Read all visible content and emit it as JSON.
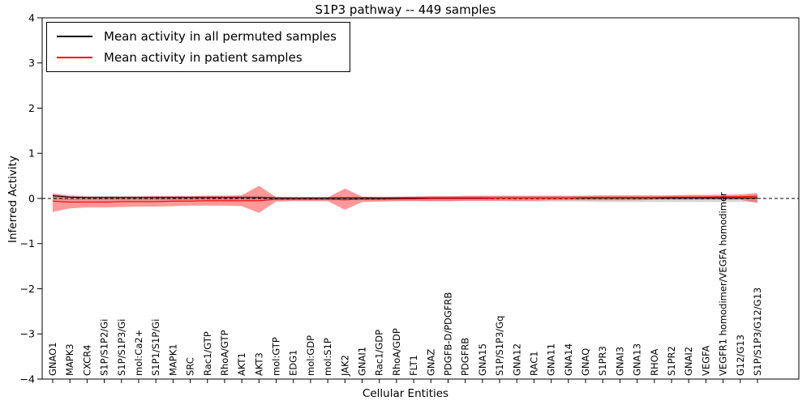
{
  "chart_data": {
    "type": "line",
    "title": "S1P3 pathway -- 449 samples",
    "xlabel": "Cellular Entities",
    "ylabel": "Inferred Activity",
    "ylim": [
      -4,
      4
    ],
    "yticks": [
      -4,
      -3,
      -2,
      -1,
      0,
      1,
      2,
      3,
      4
    ],
    "grid": false,
    "zero_line": true,
    "legend_position": "upper left",
    "categories": [
      "GNAO1",
      "MAPK3",
      "CXCR4",
      "S1P/S1P2/Gi",
      "S1P/S1P3/Gi",
      "mol:Ca2+",
      "S1P1/S1P/Gi",
      "MAPK1",
      "SRC",
      "Rac1/GTP",
      "RhoA/GTP",
      "AKT1",
      "AKT3",
      "mol:GTP",
      "EDG1",
      "mol:GDP",
      "mol:S1P",
      "JAK2",
      "GNAI1",
      "Rac1/GDP",
      "RhoA/GDP",
      "FLT1",
      "GNAZ",
      "PDGFB-D/PDGFRB",
      "PDGFRB",
      "GNA15",
      "S1P/S1P3/Gq",
      "GNA12",
      "RAC1",
      "GNA11",
      "GNA14",
      "GNAQ",
      "S1PR3",
      "GNAI3",
      "GNA13",
      "RHOA",
      "S1PR2",
      "GNAI2",
      "VEGFA",
      "VEGFR1 homodimer/VEGFA homodimer",
      "G12/G13",
      "S1P/S1P3/G12/G13"
    ],
    "series": [
      {
        "name": "Mean activity in all permuted samples",
        "color": "#000000",
        "band_color": "rgba(0,0,0,0.15)",
        "values": [
          0.06,
          0.03,
          0.02,
          0.02,
          0.02,
          0.02,
          0.02,
          0.02,
          0.02,
          0.02,
          0.02,
          0.02,
          0.02,
          0.01,
          0.01,
          0.01,
          0.01,
          0.01,
          0.01,
          0.01,
          0.01,
          0.01,
          0.01,
          0.01,
          0.01,
          0.01,
          0.01,
          0.01,
          0.01,
          0.01,
          0.01,
          0.01,
          0.01,
          0.01,
          0.01,
          0.01,
          0.01,
          0.01,
          0.01,
          0.01,
          0.01,
          0.01
        ],
        "band_upper": [
          0.12,
          0.08,
          0.06,
          0.06,
          0.06,
          0.06,
          0.06,
          0.06,
          0.06,
          0.06,
          0.06,
          0.06,
          0.06,
          0.04,
          0.04,
          0.04,
          0.04,
          0.04,
          0.04,
          0.04,
          0.05,
          0.05,
          0.05,
          0.05,
          0.05,
          0.05,
          0.05,
          0.05,
          0.05,
          0.05,
          0.05,
          0.05,
          0.05,
          0.05,
          0.05,
          0.05,
          0.05,
          0.05,
          0.05,
          0.05,
          0.06,
          0.06
        ],
        "band_lower": [
          -0.02,
          -0.04,
          -0.04,
          -0.04,
          -0.04,
          -0.04,
          -0.04,
          -0.04,
          -0.04,
          -0.04,
          -0.04,
          -0.04,
          -0.04,
          -0.03,
          -0.03,
          -0.03,
          -0.03,
          -0.03,
          -0.03,
          -0.04,
          -0.05,
          -0.05,
          -0.06,
          -0.06,
          -0.06,
          -0.06,
          -0.06,
          -0.07,
          -0.07,
          -0.07,
          -0.07,
          -0.07,
          -0.08,
          -0.08,
          -0.08,
          -0.08,
          -0.08,
          -0.08,
          -0.08,
          -0.08,
          -0.08,
          -0.08
        ]
      },
      {
        "name": "Mean activity in patient samples",
        "color": "#ff0000",
        "band_color": "rgba(255,0,0,0.40)",
        "values": [
          -0.06,
          -0.08,
          -0.08,
          -0.08,
          -0.07,
          -0.07,
          -0.07,
          -0.06,
          -0.06,
          -0.05,
          -0.05,
          -0.05,
          -0.05,
          -0.02,
          -0.02,
          -0.02,
          -0.02,
          -0.03,
          -0.02,
          -0.02,
          -0.01,
          -0.01,
          0.0,
          0.0,
          0.0,
          0.0,
          0.01,
          0.01,
          0.01,
          0.01,
          0.01,
          0.02,
          0.02,
          0.02,
          0.02,
          0.02,
          0.03,
          0.03,
          0.03,
          0.04,
          0.04,
          0.05
        ],
        "band_upper": [
          0.1,
          0.05,
          0.04,
          0.04,
          0.04,
          0.04,
          0.05,
          0.05,
          0.05,
          0.06,
          0.06,
          0.07,
          0.28,
          0.03,
          0.02,
          0.02,
          0.02,
          0.22,
          0.04,
          0.03,
          0.03,
          0.04,
          0.05,
          0.05,
          0.06,
          0.06,
          0.06,
          0.06,
          0.06,
          0.06,
          0.06,
          0.06,
          0.07,
          0.07,
          0.07,
          0.07,
          0.07,
          0.08,
          0.08,
          0.08,
          0.09,
          0.12
        ],
        "band_lower": [
          -0.3,
          -0.22,
          -0.2,
          -0.2,
          -0.19,
          -0.18,
          -0.18,
          -0.17,
          -0.16,
          -0.16,
          -0.16,
          -0.17,
          -0.32,
          -0.07,
          -0.06,
          -0.06,
          -0.06,
          -0.25,
          -0.08,
          -0.07,
          -0.06,
          -0.06,
          -0.06,
          -0.06,
          -0.05,
          -0.05,
          -0.05,
          -0.05,
          -0.05,
          -0.04,
          -0.04,
          -0.04,
          -0.04,
          -0.04,
          -0.04,
          -0.03,
          -0.03,
          -0.03,
          -0.03,
          -0.03,
          -0.03,
          -0.1
        ]
      }
    ]
  }
}
